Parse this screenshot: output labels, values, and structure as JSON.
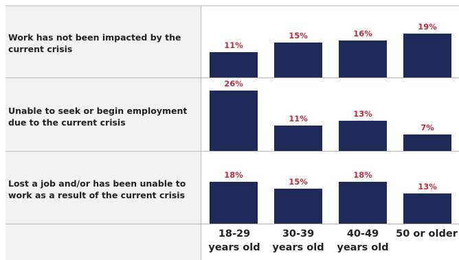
{
  "chart_data": {
    "type": "bar",
    "categories": [
      "18-29\nyears old",
      "30-39\nyears old",
      "40-49\nyears old",
      "50 or older"
    ],
    "rows": [
      {
        "label": "Work has not been impacted by the current crisis",
        "values": [
          11,
          15,
          16,
          19
        ]
      },
      {
        "label": "Unable to seek or begin employment due to the current crisis",
        "values": [
          26,
          11,
          13,
          7
        ]
      },
      {
        "label": "Lost a job and/or has been unable to work as a result of the current crisis",
        "values": [
          18,
          15,
          18,
          13
        ]
      }
    ],
    "value_suffix": "%",
    "ylim": [
      0,
      26
    ],
    "grid": false,
    "colors": {
      "bar": "#1d2a5a",
      "value_label": "#c0283c",
      "label_bg": "#f2f2f2"
    }
  }
}
